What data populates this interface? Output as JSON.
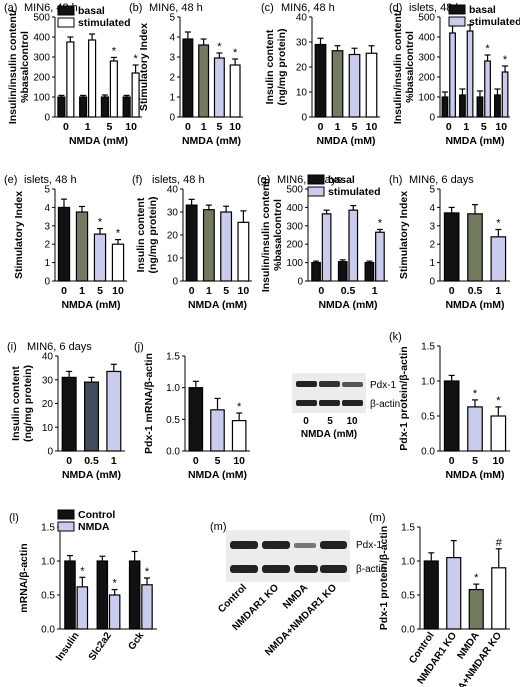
{
  "figure": {
    "blot_bands": {
      "k_pdx1": "Pdx-1",
      "k_actin": "β-actin",
      "m_pdx1": "Pdx-1",
      "m_actin": "β-actin"
    },
    "colors": {
      "black": "#111111",
      "lavender": "#c9ccec",
      "olive": "#727b5f",
      "slate": "#414b5c",
      "white": "#ffffff"
    }
  },
  "chart_data": [
    {
      "id": "a",
      "panel_label": "(a)",
      "subtitle": "MIN6, 48 h",
      "type": "bar",
      "categories": [
        "0",
        "1",
        "5",
        "10"
      ],
      "xlabel": "NMDA (mM)",
      "ylabel": "Insulin/insulin content/\n%basalcontrol",
      "ylim": [
        0,
        500
      ],
      "yticks": [
        0,
        100,
        200,
        300,
        400,
        500
      ],
      "legend": [
        "basal",
        "stimulated"
      ],
      "legend_position": "top-left",
      "series": [
        {
          "name": "basal",
          "color": "#111111",
          "values": [
            100,
            100,
            100,
            100
          ],
          "errors": [
            8,
            8,
            10,
            8
          ],
          "marks": [
            "",
            "",
            "",
            ""
          ]
        },
        {
          "name": "stimulated",
          "color": "#ffffff",
          "values": [
            375,
            385,
            280,
            220
          ],
          "errors": [
            25,
            30,
            18,
            40
          ],
          "marks": [
            "",
            "",
            "*",
            "*"
          ]
        }
      ]
    },
    {
      "id": "b",
      "panel_label": "(b)",
      "subtitle": "MIN6, 48 h",
      "type": "bar",
      "categories": [
        "0",
        "1",
        "5",
        "10"
      ],
      "xlabel": "NMDA (mM)",
      "ylabel": "Stimulatory Index",
      "ylim": [
        0,
        5
      ],
      "yticks": [
        0,
        1,
        2,
        3,
        4,
        5
      ],
      "values": [
        3.9,
        3.6,
        2.95,
        2.6
      ],
      "errors": [
        0.35,
        0.3,
        0.25,
        0.3
      ],
      "colors": [
        "#111111",
        "#727b5f",
        "#c9ccec",
        "#ffffff"
      ],
      "marks": [
        "",
        "",
        "*",
        "*"
      ]
    },
    {
      "id": "c",
      "panel_label": "(c)",
      "subtitle": "MIN6, 48 h",
      "type": "bar",
      "categories": [
        "0",
        "1",
        "5",
        "10"
      ],
      "xlabel": "NMDA (mM)",
      "ylabel": "Insulin content\n(ng/mg protein)",
      "ylim": [
        0,
        40
      ],
      "yticks": [
        0,
        10,
        20,
        30,
        40
      ],
      "values": [
        29,
        26.5,
        25,
        25.5
      ],
      "errors": [
        2.5,
        2,
        2.5,
        3
      ],
      "colors": [
        "#111111",
        "#727b5f",
        "#c9ccec",
        "#ffffff"
      ],
      "marks": [
        "",
        "",
        "",
        ""
      ]
    },
    {
      "id": "d",
      "panel_label": "(d)",
      "subtitle": "islets, 48 h",
      "type": "bar",
      "categories": [
        "0",
        "1",
        "5",
        "10"
      ],
      "xlabel": "NMDA (mM)",
      "ylabel": "Insulin/insulin content/\n%basalcontrol",
      "ylim": [
        0,
        500
      ],
      "yticks": [
        0,
        100,
        200,
        300,
        400,
        500
      ],
      "legend": [
        "basal",
        "stimulated"
      ],
      "legend_position": "top-right",
      "series": [
        {
          "name": "basal",
          "color": "#111111",
          "values": [
            100,
            110,
            100,
            110
          ],
          "errors": [
            25,
            30,
            30,
            30
          ],
          "marks": [
            "",
            "",
            "",
            ""
          ]
        },
        {
          "name": "stimulated",
          "color": "#c9ccec",
          "values": [
            420,
            430,
            280,
            225
          ],
          "errors": [
            35,
            30,
            30,
            30
          ],
          "marks": [
            "",
            "",
            "*",
            "*"
          ]
        }
      ]
    },
    {
      "id": "e",
      "panel_label": "(e)",
      "subtitle": "islets, 48 h",
      "type": "bar",
      "categories": [
        "0",
        "1",
        "5",
        "10"
      ],
      "xlabel": "NMDA (mM)",
      "ylabel": "Stimulatory Index",
      "ylim": [
        0,
        5
      ],
      "yticks": [
        0,
        1,
        2,
        3,
        4,
        5
      ],
      "values": [
        4.0,
        3.75,
        2.55,
        2.0
      ],
      "errors": [
        0.45,
        0.3,
        0.3,
        0.25
      ],
      "colors": [
        "#111111",
        "#727b5f",
        "#c9ccec",
        "#ffffff"
      ],
      "marks": [
        "",
        "",
        "*",
        "*"
      ]
    },
    {
      "id": "f",
      "panel_label": "(f)",
      "subtitle": "islets, 48 h",
      "type": "bar",
      "categories": [
        "0",
        "1",
        "5",
        "10"
      ],
      "xlabel": "NMDA (mM)",
      "ylabel": "Insulin content\n(ng/mg protein)",
      "ylim": [
        0,
        40
      ],
      "yticks": [
        0,
        10,
        20,
        30,
        40
      ],
      "values": [
        33,
        31,
        30,
        25.5
      ],
      "errors": [
        2.5,
        2,
        2.5,
        5
      ],
      "colors": [
        "#111111",
        "#727b5f",
        "#c9ccec",
        "#ffffff"
      ],
      "marks": [
        "",
        "",
        "",
        ""
      ]
    },
    {
      "id": "g",
      "panel_label": "(g)",
      "subtitle": "MIN6, 6 days",
      "type": "bar",
      "categories": [
        "0",
        "0.5",
        "1"
      ],
      "xlabel": "NMDA (mM)",
      "ylabel": "Insulin/insulin content/\n%basalcontrol",
      "ylim": [
        0,
        500
      ],
      "yticks": [
        0,
        100,
        200,
        300,
        400,
        500
      ],
      "legend": [
        "basal",
        "stimulated"
      ],
      "legend_position": "top-left",
      "series": [
        {
          "name": "basal",
          "color": "#111111",
          "values": [
            100,
            105,
            100
          ],
          "errors": [
            8,
            10,
            8
          ],
          "marks": [
            "",
            "",
            ""
          ]
        },
        {
          "name": "stimulated",
          "color": "#c9ccec",
          "values": [
            365,
            385,
            265
          ],
          "errors": [
            20,
            25,
            15
          ],
          "marks": [
            "",
            "",
            "*"
          ]
        }
      ]
    },
    {
      "id": "h",
      "panel_label": "(h)",
      "subtitle": "MIN6, 6 days",
      "type": "bar",
      "categories": [
        "0",
        "0.5",
        "1"
      ],
      "xlabel": "NMDA (mM)",
      "ylabel": "Stimulatory Index",
      "ylim": [
        0,
        5
      ],
      "yticks": [
        0,
        1,
        2,
        3,
        4,
        5
      ],
      "values": [
        3.7,
        3.65,
        2.4
      ],
      "errors": [
        0.3,
        0.5,
        0.4
      ],
      "colors": [
        "#111111",
        "#727b5f",
        "#c9ccec"
      ],
      "marks": [
        "",
        "",
        "*"
      ]
    },
    {
      "id": "i",
      "panel_label": "(i)",
      "subtitle": "MIN6, 6 days",
      "type": "bar",
      "categories": [
        "0",
        "0.5",
        "1"
      ],
      "xlabel": "NMDA (mM)",
      "ylabel": "Insulin content\n(ng/mg protein)",
      "ylim": [
        0,
        40
      ],
      "yticks": [
        0,
        10,
        20,
        30,
        40
      ],
      "values": [
        31,
        29,
        33.5
      ],
      "errors": [
        2.5,
        2,
        3
      ],
      "colors": [
        "#111111",
        "#414b5c",
        "#c9ccec"
      ],
      "marks": [
        "",
        "",
        ""
      ]
    },
    {
      "id": "j",
      "panel_label": "(j)",
      "subtitle": "",
      "type": "bar",
      "categories": [
        "0",
        "5",
        "10"
      ],
      "xlabel": "NMDA (mM)",
      "ylabel": "Pdx-1 mRNA/β-actin",
      "ylim": [
        0,
        1.5
      ],
      "yticks": [
        0.0,
        0.5,
        1.0,
        1.5
      ],
      "tick_decimals": 1,
      "values": [
        1.0,
        0.65,
        0.48
      ],
      "errors": [
        0.1,
        0.18,
        0.12
      ],
      "colors": [
        "#111111",
        "#c9ccec",
        "#ffffff"
      ],
      "marks": [
        "",
        "",
        "*"
      ]
    },
    {
      "id": "k",
      "panel_label": "(k)",
      "subtitle": "",
      "type": "bar",
      "categories": [
        "0",
        "5",
        "10"
      ],
      "xlabel": "NMDA (mM)",
      "ylabel": "Pdx-1 protein/β-actin",
      "ylim": [
        0,
        1.5
      ],
      "yticks": [
        0.0,
        0.5,
        1.0,
        1.5
      ],
      "tick_decimals": 1,
      "values": [
        1.0,
        0.63,
        0.5
      ],
      "errors": [
        0.08,
        0.1,
        0.13
      ],
      "colors": [
        "#111111",
        "#c9ccec",
        "#ffffff"
      ],
      "marks": [
        "",
        "*",
        "*"
      ],
      "blot_lane_labels": [
        "0",
        "5",
        "10"
      ],
      "blot_xlabel": "NMDA (mM)"
    },
    {
      "id": "l",
      "panel_label": "(l)",
      "subtitle": "",
      "type": "bar",
      "categories": [
        "Insulin",
        "Slc2a2",
        "Gck"
      ],
      "xlabel": "",
      "ylabel": "mRNA/β-actin",
      "ylim": [
        0,
        1.5
      ],
      "yticks": [
        0.0,
        0.5,
        1.0,
        1.5
      ],
      "tick_decimals": 1,
      "legend": [
        "Control",
        "NMDA"
      ],
      "legend_position": "top-left",
      "series": [
        {
          "name": "Control",
          "color": "#111111",
          "values": [
            1.0,
            1.0,
            1.0
          ],
          "errors": [
            0.08,
            0.07,
            0.14
          ],
          "marks": [
            "",
            "",
            ""
          ]
        },
        {
          "name": "NMDA",
          "color": "#c9ccec",
          "values": [
            0.62,
            0.5,
            0.65
          ],
          "errors": [
            0.14,
            0.08,
            0.1
          ],
          "marks": [
            "*",
            "*",
            "*"
          ]
        }
      ]
    },
    {
      "id": "m",
      "panel_label": "(m)",
      "subtitle": "",
      "type": "bar",
      "categories": [
        "Control",
        "NMDAR1 KO",
        "NMDA",
        "NMDA+NMDAR KO"
      ],
      "xlabel": "",
      "ylabel": "Pdx-1 protein/β-actin",
      "ylim": [
        0,
        1.5
      ],
      "yticks": [
        0.0,
        0.5,
        1.0,
        1.5
      ],
      "tick_decimals": 1,
      "values": [
        1.0,
        1.05,
        0.58,
        0.9
      ],
      "errors": [
        0.12,
        0.25,
        0.08,
        0.28
      ],
      "colors": [
        "#111111",
        "#c9ccec",
        "#727b5f",
        "#ffffff"
      ],
      "marks": [
        "",
        "",
        "*",
        "#"
      ],
      "blot_lane_labels": [
        "Control",
        "NMDAR1 KO",
        "NMDA",
        "NMDA+NMDAR1 KO"
      ]
    }
  ]
}
